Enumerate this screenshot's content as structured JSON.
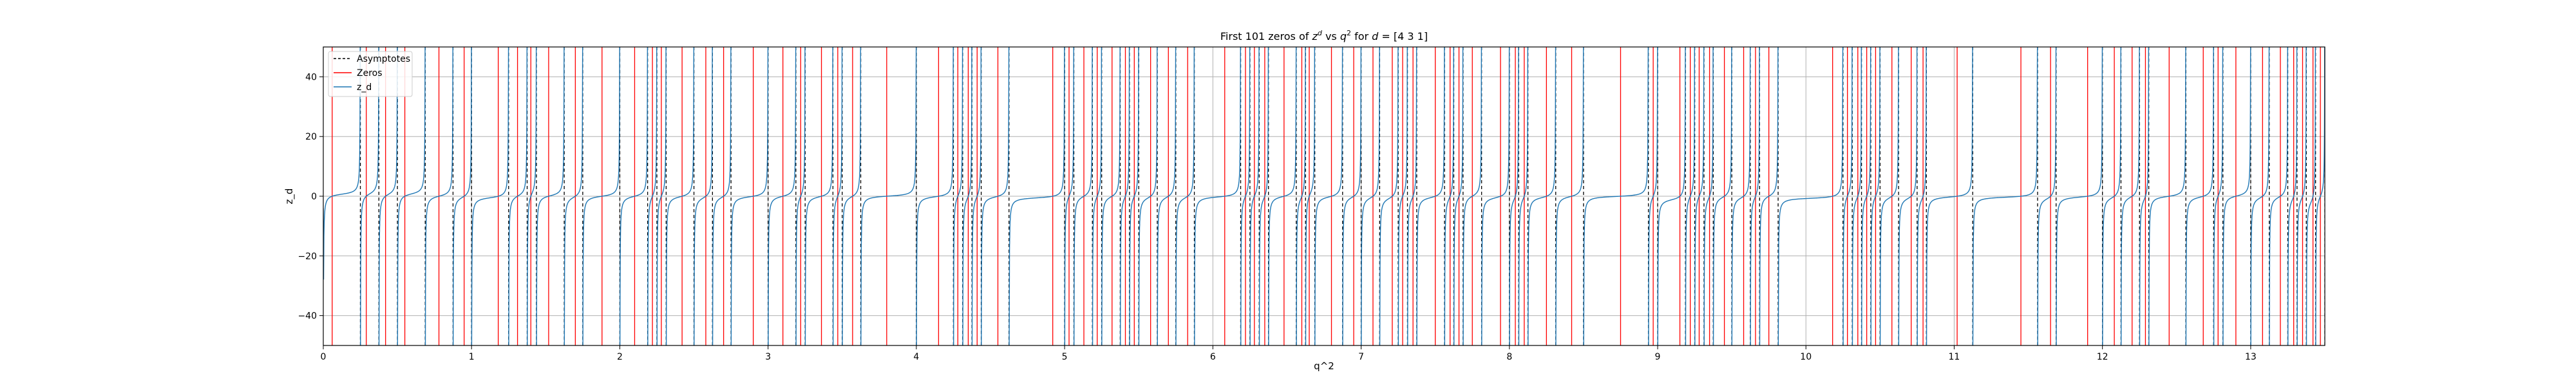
{
  "chart_data": {
    "type": "line",
    "title_main": "First 101 zeros of ",
    "title_z": "z",
    "title_z_sup": "d",
    "title_vs": " vs ",
    "title_q": "q",
    "title_q_sup": "2",
    "title_for": " for ",
    "title_d": "d",
    "title_end": " = [4 3 1]",
    "xlabel": "q^2",
    "ylabel": "z_d",
    "xlim": [
      0,
      13.5
    ],
    "ylim": [
      -50,
      50
    ],
    "xticks": [
      0,
      1,
      2,
      3,
      4,
      5,
      6,
      7,
      8,
      9,
      10,
      11,
      12,
      13
    ],
    "yticks": [
      -40,
      -20,
      0,
      20,
      40
    ],
    "grid": true,
    "legend_position": "upper-left",
    "colors": {
      "asymptotes": "#000000",
      "zeros": "#ff0000",
      "z_d": "#1f77b4",
      "grid": "#b0b0b0"
    },
    "series": [
      {
        "name": "Asymptotes",
        "style": "dashed",
        "x": [
          0.25,
          0.375,
          0.5,
          0.6875,
          0.875,
          1.0,
          1.25,
          1.375,
          1.4375,
          1.625,
          1.75,
          2.0,
          2.1875,
          2.25,
          2.3125,
          2.5,
          2.625,
          2.75,
          3.0,
          3.1875,
          3.25,
          3.4375,
          3.5,
          3.625,
          4.0,
          4.25,
          4.3125,
          4.375,
          4.4375,
          4.625,
          5.0,
          5.0625,
          5.1875,
          5.25,
          5.375,
          5.4375,
          5.5,
          5.625,
          5.75,
          5.875,
          6.1875,
          6.25,
          6.3125,
          6.375,
          6.5625,
          6.625,
          6.6875,
          6.875,
          7.0,
          7.125,
          7.25,
          7.3125,
          7.375,
          7.5625,
          7.625,
          7.6875,
          7.8125,
          8.0,
          8.0625,
          8.125,
          8.3125,
          8.5,
          8.9375,
          9.0,
          9.1875,
          9.25,
          9.3125,
          9.375,
          9.5,
          9.625,
          9.6875,
          9.8125,
          10.25,
          10.3125,
          10.375,
          10.4375,
          10.5,
          10.625,
          10.75,
          10.8125,
          11.125,
          11.5625,
          11.6875,
          12.0,
          12.125,
          12.25,
          12.3125,
          12.5625,
          12.75,
          12.8125,
          13.0,
          13.125,
          13.25,
          13.3125,
          13.375,
          13.4375,
          13.5
        ]
      },
      {
        "name": "Zeros",
        "x": [
          0.06,
          0.29,
          0.42,
          0.55,
          0.78,
          0.95,
          1.18,
          1.31,
          1.4,
          1.52,
          1.7,
          1.88,
          2.1,
          2.22,
          2.28,
          2.42,
          2.58,
          2.7,
          2.9,
          3.1,
          3.22,
          3.36,
          3.47,
          3.57,
          3.8,
          4.15,
          4.28,
          4.35,
          4.41,
          4.55,
          4.92,
          5.03,
          5.13,
          5.22,
          5.32,
          5.41,
          5.47,
          5.58,
          5.7,
          5.83,
          6.08,
          6.22,
          6.28,
          6.35,
          6.48,
          6.6,
          6.65,
          6.8,
          6.95,
          7.08,
          7.21,
          7.28,
          7.35,
          7.5,
          7.6,
          7.66,
          7.75,
          7.94,
          8.04,
          8.1,
          8.25,
          8.42,
          8.75,
          8.97,
          9.15,
          9.22,
          9.28,
          9.35,
          9.45,
          9.58,
          9.66,
          9.75,
          10.18,
          10.28,
          10.35,
          10.41,
          10.47,
          10.58,
          10.71,
          10.79,
          11.02,
          11.45,
          11.65,
          11.9,
          12.08,
          12.2,
          12.29,
          12.45,
          12.68,
          12.78,
          12.9,
          13.08,
          13.2,
          13.29,
          13.35,
          13.42,
          13.47
        ]
      },
      {
        "name": "z_d",
        "style": "tan-branches",
        "x0": 0,
        "y0": -4
      }
    ]
  }
}
